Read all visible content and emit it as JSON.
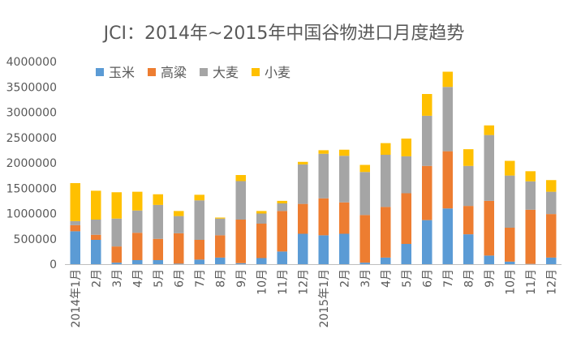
{
  "chart_data": {
    "type": "bar",
    "stacked": true,
    "title": "JCI：2014年~2015年中国谷物进口月度趋势",
    "xlabel": "",
    "ylabel": "",
    "ylim": [
      0,
      4000000
    ],
    "yticks": [
      "0",
      "500000",
      "1000000",
      "1500000",
      "2000000",
      "2500000",
      "3000000",
      "3500000",
      "4000000"
    ],
    "grid": false,
    "legend_position": "top-left",
    "categories": [
      "2014年1月",
      "2月",
      "3月",
      "4月",
      "5月",
      "6月",
      "7月",
      "8月",
      "9月",
      "10月",
      "11月",
      "12月",
      "2015年1月",
      "2月",
      "3月",
      "4月",
      "5月",
      "6月",
      "7月",
      "8月",
      "9月",
      "10月",
      "11月",
      "12月"
    ],
    "series": [
      {
        "name": "玉米",
        "color": "#5B9BD5",
        "values": [
          650000,
          480000,
          30000,
          80000,
          80000,
          10000,
          90000,
          130000,
          20000,
          120000,
          250000,
          600000,
          570000,
          600000,
          30000,
          130000,
          400000,
          870000,
          1100000,
          590000,
          170000,
          50000,
          5000,
          130000
        ]
      },
      {
        "name": "高粱",
        "color": "#ED7D31",
        "values": [
          120000,
          100000,
          320000,
          540000,
          420000,
          600000,
          390000,
          440000,
          860000,
          680000,
          800000,
          590000,
          730000,
          620000,
          940000,
          1000000,
          1000000,
          1070000,
          1130000,
          560000,
          1080000,
          670000,
          1070000,
          860000
        ]
      },
      {
        "name": "大麦",
        "color": "#A5A5A5",
        "values": [
          80000,
          300000,
          550000,
          440000,
          670000,
          340000,
          780000,
          330000,
          760000,
          200000,
          150000,
          780000,
          880000,
          920000,
          850000,
          1030000,
          730000,
          990000,
          1270000,
          790000,
          1300000,
          1030000,
          560000,
          440000
        ]
      },
      {
        "name": "小麦",
        "color": "#FFC000",
        "values": [
          750000,
          570000,
          520000,
          370000,
          210000,
          100000,
          110000,
          20000,
          120000,
          50000,
          50000,
          50000,
          70000,
          120000,
          140000,
          230000,
          350000,
          430000,
          300000,
          330000,
          190000,
          290000,
          200000,
          230000
        ]
      }
    ]
  }
}
